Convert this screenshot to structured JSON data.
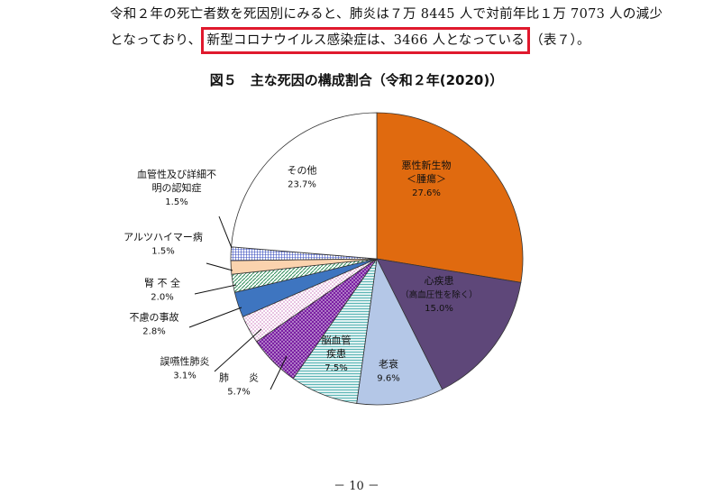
{
  "paragraph": {
    "line1": "令和２年の死亡者数を死因別にみると、肺炎は７万 8445 人で対前年比１万 7073 人の減少",
    "line2_before": "となっており、",
    "line2_highlight": "新型コロナウイルス感染症は、3466 人となっている",
    "line2_after": "（表７）。"
  },
  "page_number": "－ 10 －",
  "colors": {
    "highlight_border": "#e0192d"
  },
  "chart_data": {
    "type": "pie",
    "title": "図５　主な死因の構成割合（令和２年(2020)）",
    "slices": [
      {
        "label": "悪性新生物\n＜腫瘍＞",
        "value": 27.6,
        "value_label": "27.6%",
        "color": "#e06a0f",
        "pattern": "solid"
      },
      {
        "label": "心疾患\n（高血圧性を除く）",
        "value": 15.0,
        "value_label": "15.0%",
        "color": "#5e4779",
        "pattern": "solid"
      },
      {
        "label": "老衰",
        "value": 9.6,
        "value_label": "9.6%",
        "color": "#b4c7e7",
        "pattern": "solid"
      },
      {
        "label": "脳血管\n疾患",
        "value": 7.5,
        "value_label": "7.5%",
        "color": "#dff1f1",
        "pattern": "hlines"
      },
      {
        "label": "肺　　炎",
        "value": 5.7,
        "value_label": "5.7%",
        "color": "#7a1fa2",
        "pattern": "dots-dark"
      },
      {
        "label": "誤嚥性肺炎",
        "value": 3.1,
        "value_label": "3.1%",
        "color": "#f4d7ee",
        "pattern": "dots-light"
      },
      {
        "label": "不慮の事故",
        "value": 2.8,
        "value_label": "2.8%",
        "color": "#3e75c0",
        "pattern": "solid"
      },
      {
        "label": "腎 不 全",
        "value": 2.0,
        "value_label": "2.0%",
        "color": "#2e8b57",
        "pattern": "diag"
      },
      {
        "label": "アルツハイマー病",
        "value": 1.5,
        "value_label": "1.5%",
        "color": "#fbd3ae",
        "pattern": "solid"
      },
      {
        "label": "血管性及び詳細不\n明の認知症",
        "value": 1.5,
        "value_label": "1.5%",
        "color": "#3b4fbf",
        "pattern": "grid"
      },
      {
        "label": "その他",
        "value": 23.7,
        "value_label": "23.7%",
        "color": "#ffffff",
        "pattern": "solid"
      }
    ]
  }
}
